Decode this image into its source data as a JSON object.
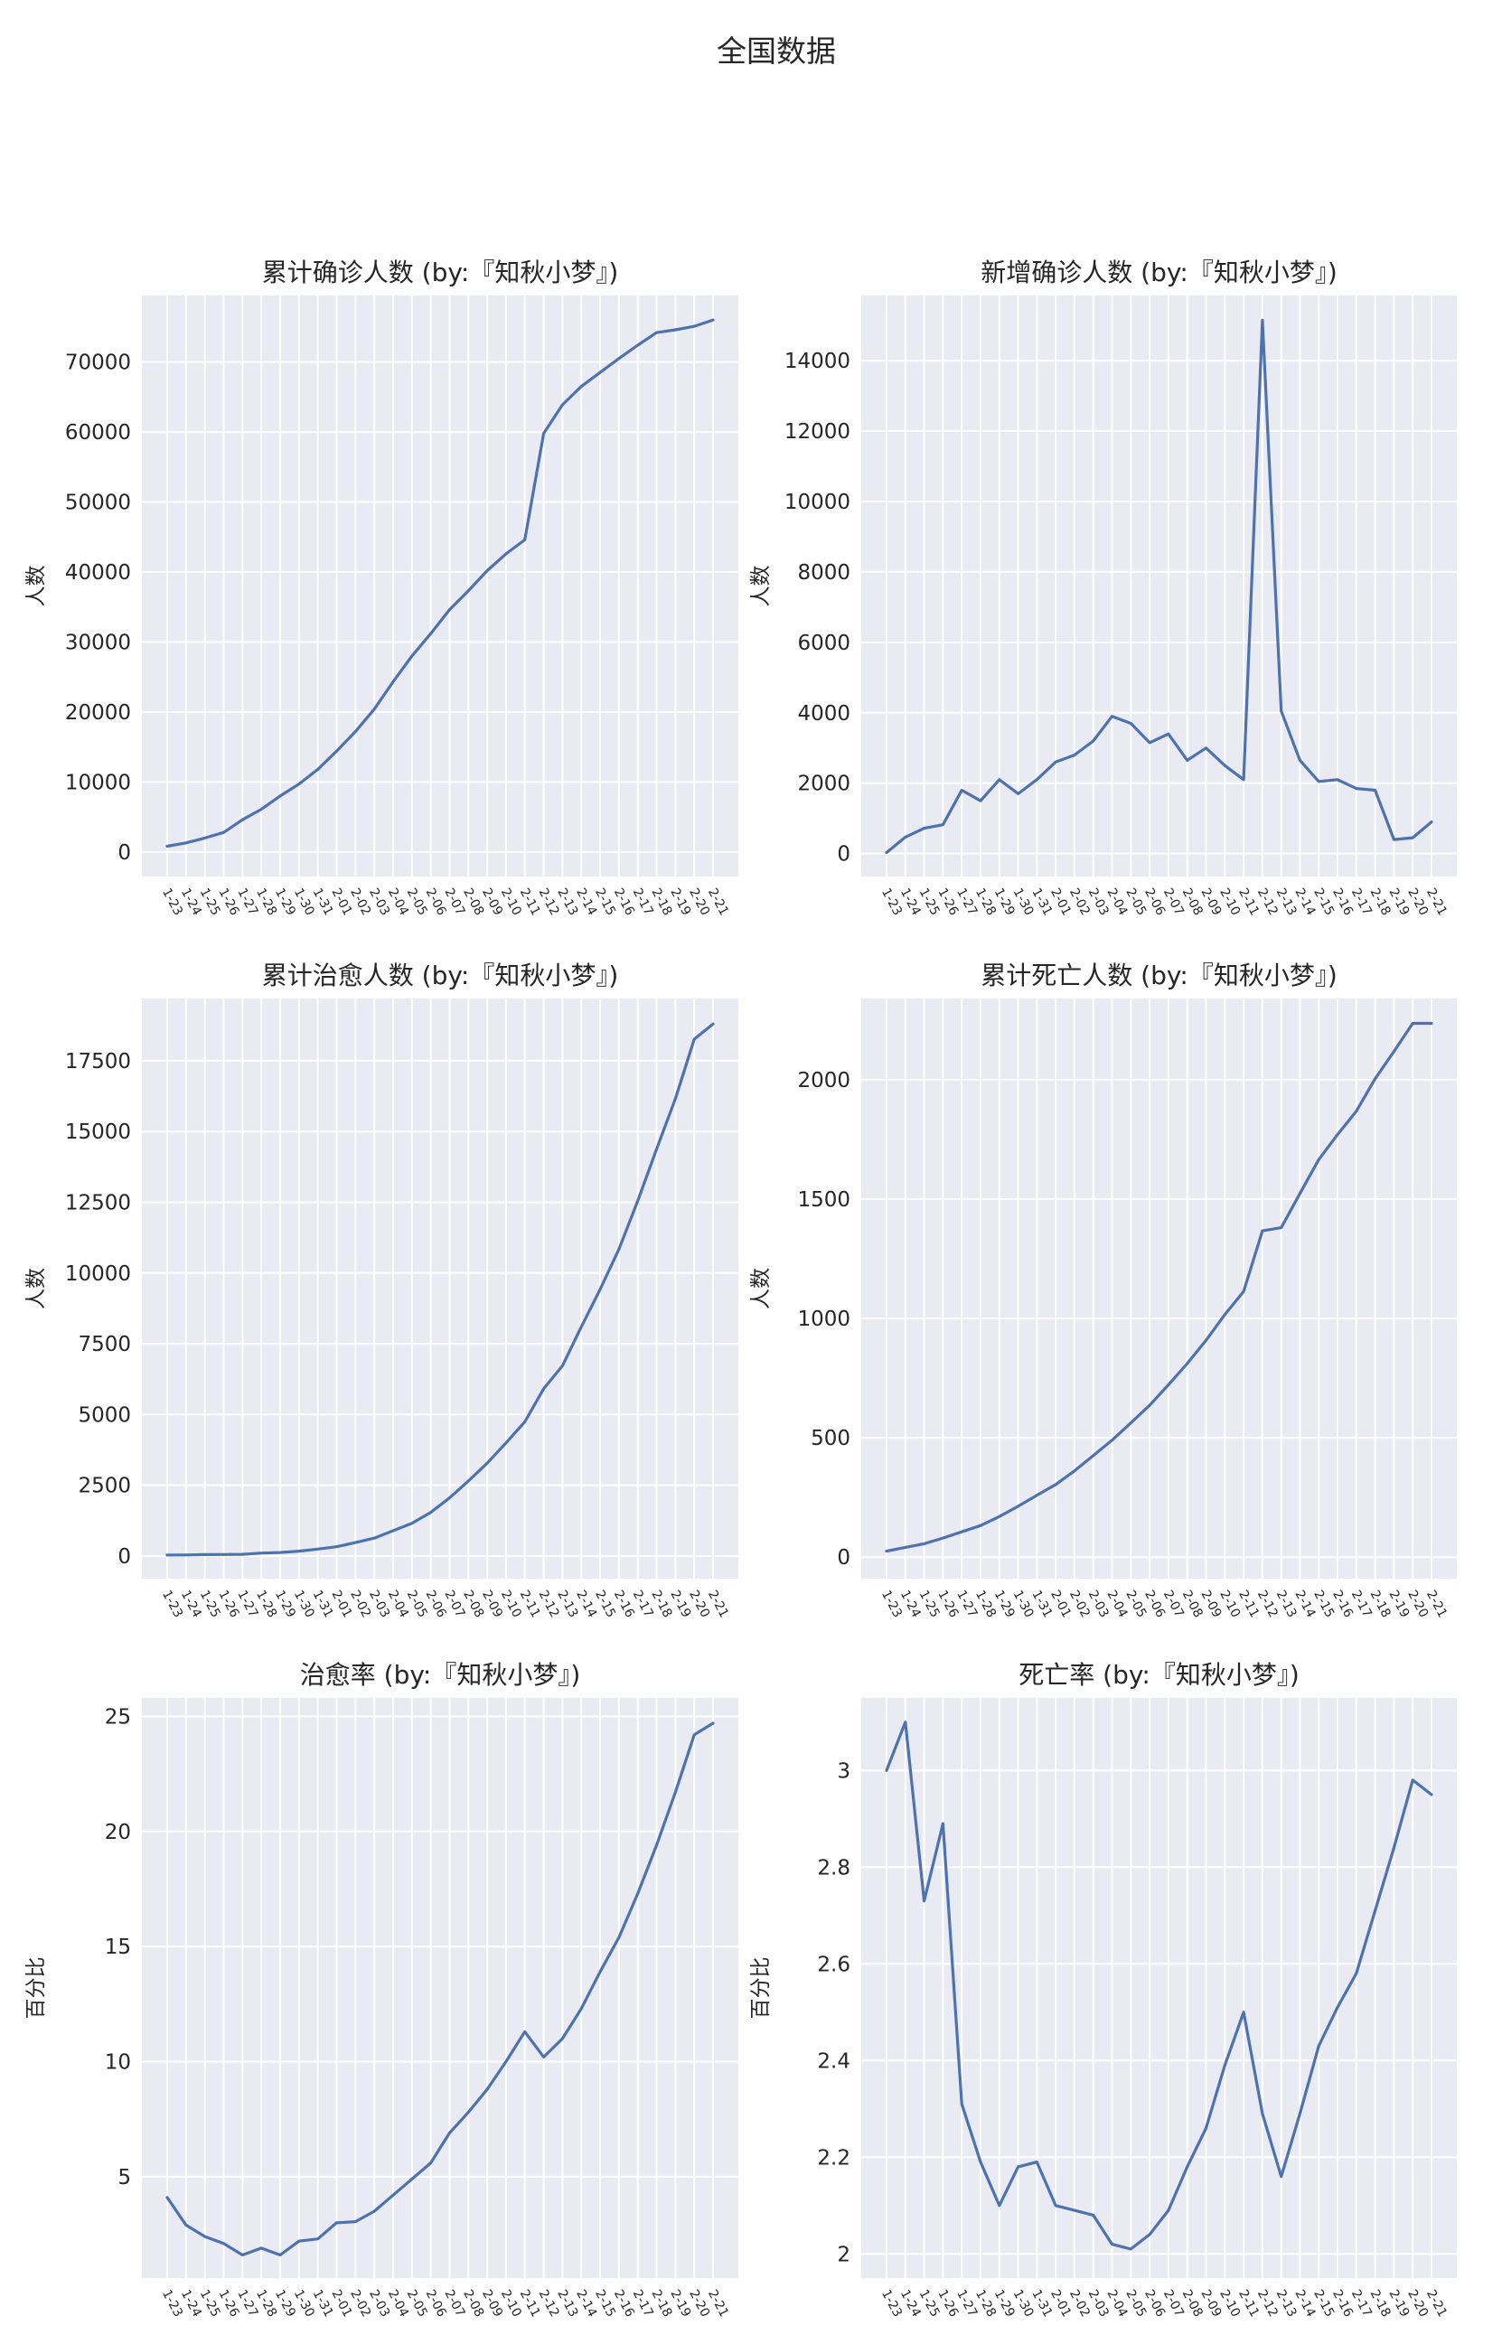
{
  "figure": {
    "title": "全国数据"
  },
  "chart_data": [
    {
      "type": "line",
      "title": "累计确诊人数 (by:『知秋小梦』)",
      "xlabel": "",
      "ylabel": "人数",
      "x": [
        "1-23",
        "1-24",
        "1-25",
        "1-26",
        "1-27",
        "1-28",
        "1-29",
        "1-30",
        "1-31",
        "2-01",
        "2-02",
        "2-03",
        "2-04",
        "2-05",
        "2-06",
        "2-07",
        "2-08",
        "2-09",
        "2-10",
        "2-11",
        "2-12",
        "2-13",
        "2-14",
        "2-15",
        "2-16",
        "2-17",
        "2-18",
        "2-19",
        "2-20",
        "2-21"
      ],
      "values": [
        830,
        1300,
        2000,
        2800,
        4600,
        6100,
        8000,
        9700,
        11800,
        14400,
        17200,
        20400,
        24300,
        28000,
        31200,
        34600,
        37300,
        40200,
        42600,
        44600,
        59800,
        63900,
        66500,
        68500,
        70500,
        72400,
        74200,
        74600,
        75100,
        76000
      ],
      "yticks": [
        0,
        10000,
        20000,
        30000,
        40000,
        50000,
        60000,
        70000
      ],
      "ylim": [
        -3500,
        79500
      ],
      "grid": true
    },
    {
      "type": "line",
      "title": "新增确诊人数 (by:『知秋小梦』)",
      "xlabel": "",
      "ylabel": "人数",
      "x": [
        "1-23",
        "1-24",
        "1-25",
        "1-26",
        "1-27",
        "1-28",
        "1-29",
        "1-30",
        "1-31",
        "2-01",
        "2-02",
        "2-03",
        "2-04",
        "2-05",
        "2-06",
        "2-07",
        "2-08",
        "2-09",
        "2-10",
        "2-11",
        "2-12",
        "2-13",
        "2-14",
        "2-15",
        "2-16",
        "2-17",
        "2-18",
        "2-19",
        "2-20",
        "2-21"
      ],
      "values": [
        30,
        470,
        720,
        820,
        1800,
        1500,
        2100,
        1700,
        2100,
        2600,
        2800,
        3200,
        3900,
        3700,
        3150,
        3400,
        2650,
        3000,
        2500,
        2100,
        15150,
        4050,
        2650,
        2050,
        2100,
        1850,
        1800,
        400,
        450,
        900
      ],
      "yticks": [
        0,
        2000,
        4000,
        6000,
        8000,
        10000,
        12000,
        14000
      ],
      "ylim": [
        -650,
        15850
      ],
      "grid": true
    },
    {
      "type": "line",
      "title": "累计治愈人数 (by:『知秋小梦』)",
      "xlabel": "",
      "ylabel": "人数",
      "x": [
        "1-23",
        "1-24",
        "1-25",
        "1-26",
        "1-27",
        "1-28",
        "1-29",
        "1-30",
        "1-31",
        "2-01",
        "2-02",
        "2-03",
        "2-04",
        "2-05",
        "2-06",
        "2-07",
        "2-08",
        "2-09",
        "2-10",
        "2-11",
        "2-12",
        "2-13",
        "2-14",
        "2-15",
        "2-16",
        "2-17",
        "2-18",
        "2-19",
        "2-20",
        "2-21"
      ],
      "values": [
        34,
        38,
        49,
        51,
        60,
        103,
        124,
        171,
        243,
        328,
        475,
        632,
        892,
        1153,
        1540,
        2050,
        2649,
        3281,
        3996,
        4740,
        5911,
        6723,
        8096,
        9419,
        10844,
        12552,
        14376,
        16155,
        18264,
        18800
      ],
      "yticks": [
        0,
        2500,
        5000,
        7500,
        10000,
        12500,
        15000,
        17500
      ],
      "ylim": [
        -800,
        19700
      ],
      "grid": true
    },
    {
      "type": "line",
      "title": "累计死亡人数 (by:『知秋小梦』)",
      "xlabel": "",
      "ylabel": "人数",
      "x": [
        "1-23",
        "1-24",
        "1-25",
        "1-26",
        "1-27",
        "1-28",
        "1-29",
        "1-30",
        "1-31",
        "2-01",
        "2-02",
        "2-03",
        "2-04",
        "2-05",
        "2-06",
        "2-07",
        "2-08",
        "2-09",
        "2-10",
        "2-11",
        "2-12",
        "2-13",
        "2-14",
        "2-15",
        "2-16",
        "2-17",
        "2-18",
        "2-19",
        "2-20",
        "2-21"
      ],
      "values": [
        25,
        41,
        56,
        80,
        106,
        132,
        170,
        213,
        259,
        304,
        361,
        425,
        490,
        562,
        636,
        722,
        811,
        908,
        1016,
        1113,
        1367,
        1380,
        1523,
        1665,
        1770,
        1868,
        2004,
        2118,
        2236,
        2236
      ],
      "yticks": [
        0,
        500,
        1000,
        1500,
        2000
      ],
      "ylim": [
        -90,
        2340
      ],
      "grid": true
    },
    {
      "type": "line",
      "title": "治愈率 (by:『知秋小梦』)",
      "xlabel": "",
      "ylabel": "百分比",
      "x": [
        "1-23",
        "1-24",
        "1-25",
        "1-26",
        "1-27",
        "1-28",
        "1-29",
        "1-30",
        "1-31",
        "2-01",
        "2-02",
        "2-03",
        "2-04",
        "2-05",
        "2-06",
        "2-07",
        "2-08",
        "2-09",
        "2-10",
        "2-11",
        "2-12",
        "2-13",
        "2-14",
        "2-15",
        "2-16",
        "2-17",
        "2-18",
        "2-19",
        "2-20",
        "2-21"
      ],
      "values": [
        4.1,
        2.9,
        2.4,
        2.1,
        1.6,
        1.9,
        1.6,
        2.2,
        2.3,
        3.0,
        3.05,
        3.5,
        4.2,
        4.9,
        5.6,
        6.9,
        7.8,
        8.8,
        10.0,
        11.3,
        10.2,
        11.0,
        12.3,
        13.9,
        15.4,
        17.3,
        19.4,
        21.7,
        24.2,
        24.7
      ],
      "yticks": [
        5,
        10,
        15,
        20,
        25
      ],
      "ylim": [
        0.6,
        25.8
      ],
      "grid": true
    },
    {
      "type": "line",
      "title": "死亡率 (by:『知秋小梦』)",
      "xlabel": "",
      "ylabel": "百分比",
      "x": [
        "1-23",
        "1-24",
        "1-25",
        "1-26",
        "1-27",
        "1-28",
        "1-29",
        "1-30",
        "1-31",
        "2-01",
        "2-02",
        "2-03",
        "2-04",
        "2-05",
        "2-06",
        "2-07",
        "2-08",
        "2-09",
        "2-10",
        "2-11",
        "2-12",
        "2-13",
        "2-14",
        "2-15",
        "2-16",
        "2-17",
        "2-18",
        "2-19",
        "2-20",
        "2-21"
      ],
      "values": [
        3.0,
        3.1,
        2.73,
        2.89,
        2.31,
        2.19,
        2.1,
        2.18,
        2.19,
        2.1,
        2.09,
        2.08,
        2.02,
        2.01,
        2.04,
        2.09,
        2.18,
        2.26,
        2.39,
        2.5,
        2.29,
        2.16,
        2.29,
        2.43,
        2.51,
        2.58,
        2.71,
        2.84,
        2.98,
        2.95
      ],
      "yticks": [
        2.0,
        2.2,
        2.4,
        2.6,
        2.8,
        3.0
      ],
      "ylim": [
        1.95,
        3.15
      ],
      "grid": true
    }
  ]
}
